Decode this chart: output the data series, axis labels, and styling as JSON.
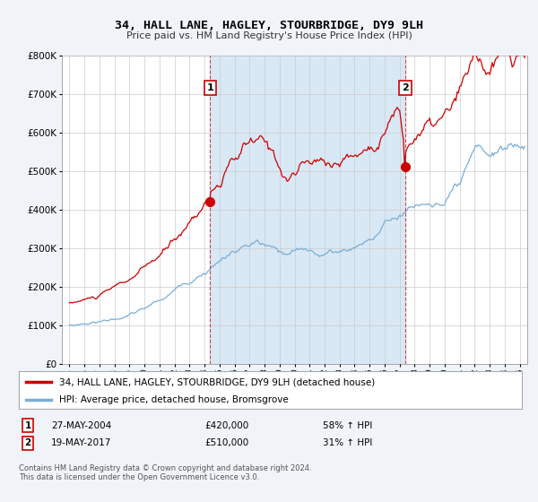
{
  "title": "34, HALL LANE, HAGLEY, STOURBRIDGE, DY9 9LH",
  "subtitle": "Price paid vs. HM Land Registry's House Price Index (HPI)",
  "background_color": "#f0f4f8",
  "plot_bg_color": "#ffffff",
  "shade_color": "#d8e8f5",
  "grid_color": "#cccccc",
  "sale1_date_num": 2004.37,
  "sale1_price": 420000,
  "sale1_label": "1",
  "sale2_date_num": 2017.37,
  "sale2_price": 510000,
  "sale2_label": "2",
  "legend_line1": "34, HALL LANE, HAGLEY, STOURBRIDGE, DY9 9LH (detached house)",
  "legend_line2": "HPI: Average price, detached house, Bromsgrove",
  "table_row1": [
    "1",
    "27-MAY-2004",
    "£420,000",
    "58% ↑ HPI"
  ],
  "table_row2": [
    "2",
    "19-MAY-2017",
    "£510,000",
    "31% ↑ HPI"
  ],
  "footer": "Contains HM Land Registry data © Crown copyright and database right 2024.\nThis data is licensed under the Open Government Licence v3.0.",
  "ylim": [
    0,
    800000
  ],
  "xlim_start": 1994.5,
  "xlim_end": 2025.5,
  "red_color": "#cc0000",
  "blue_color": "#7aaed6",
  "dashed_color": "#cc0000"
}
